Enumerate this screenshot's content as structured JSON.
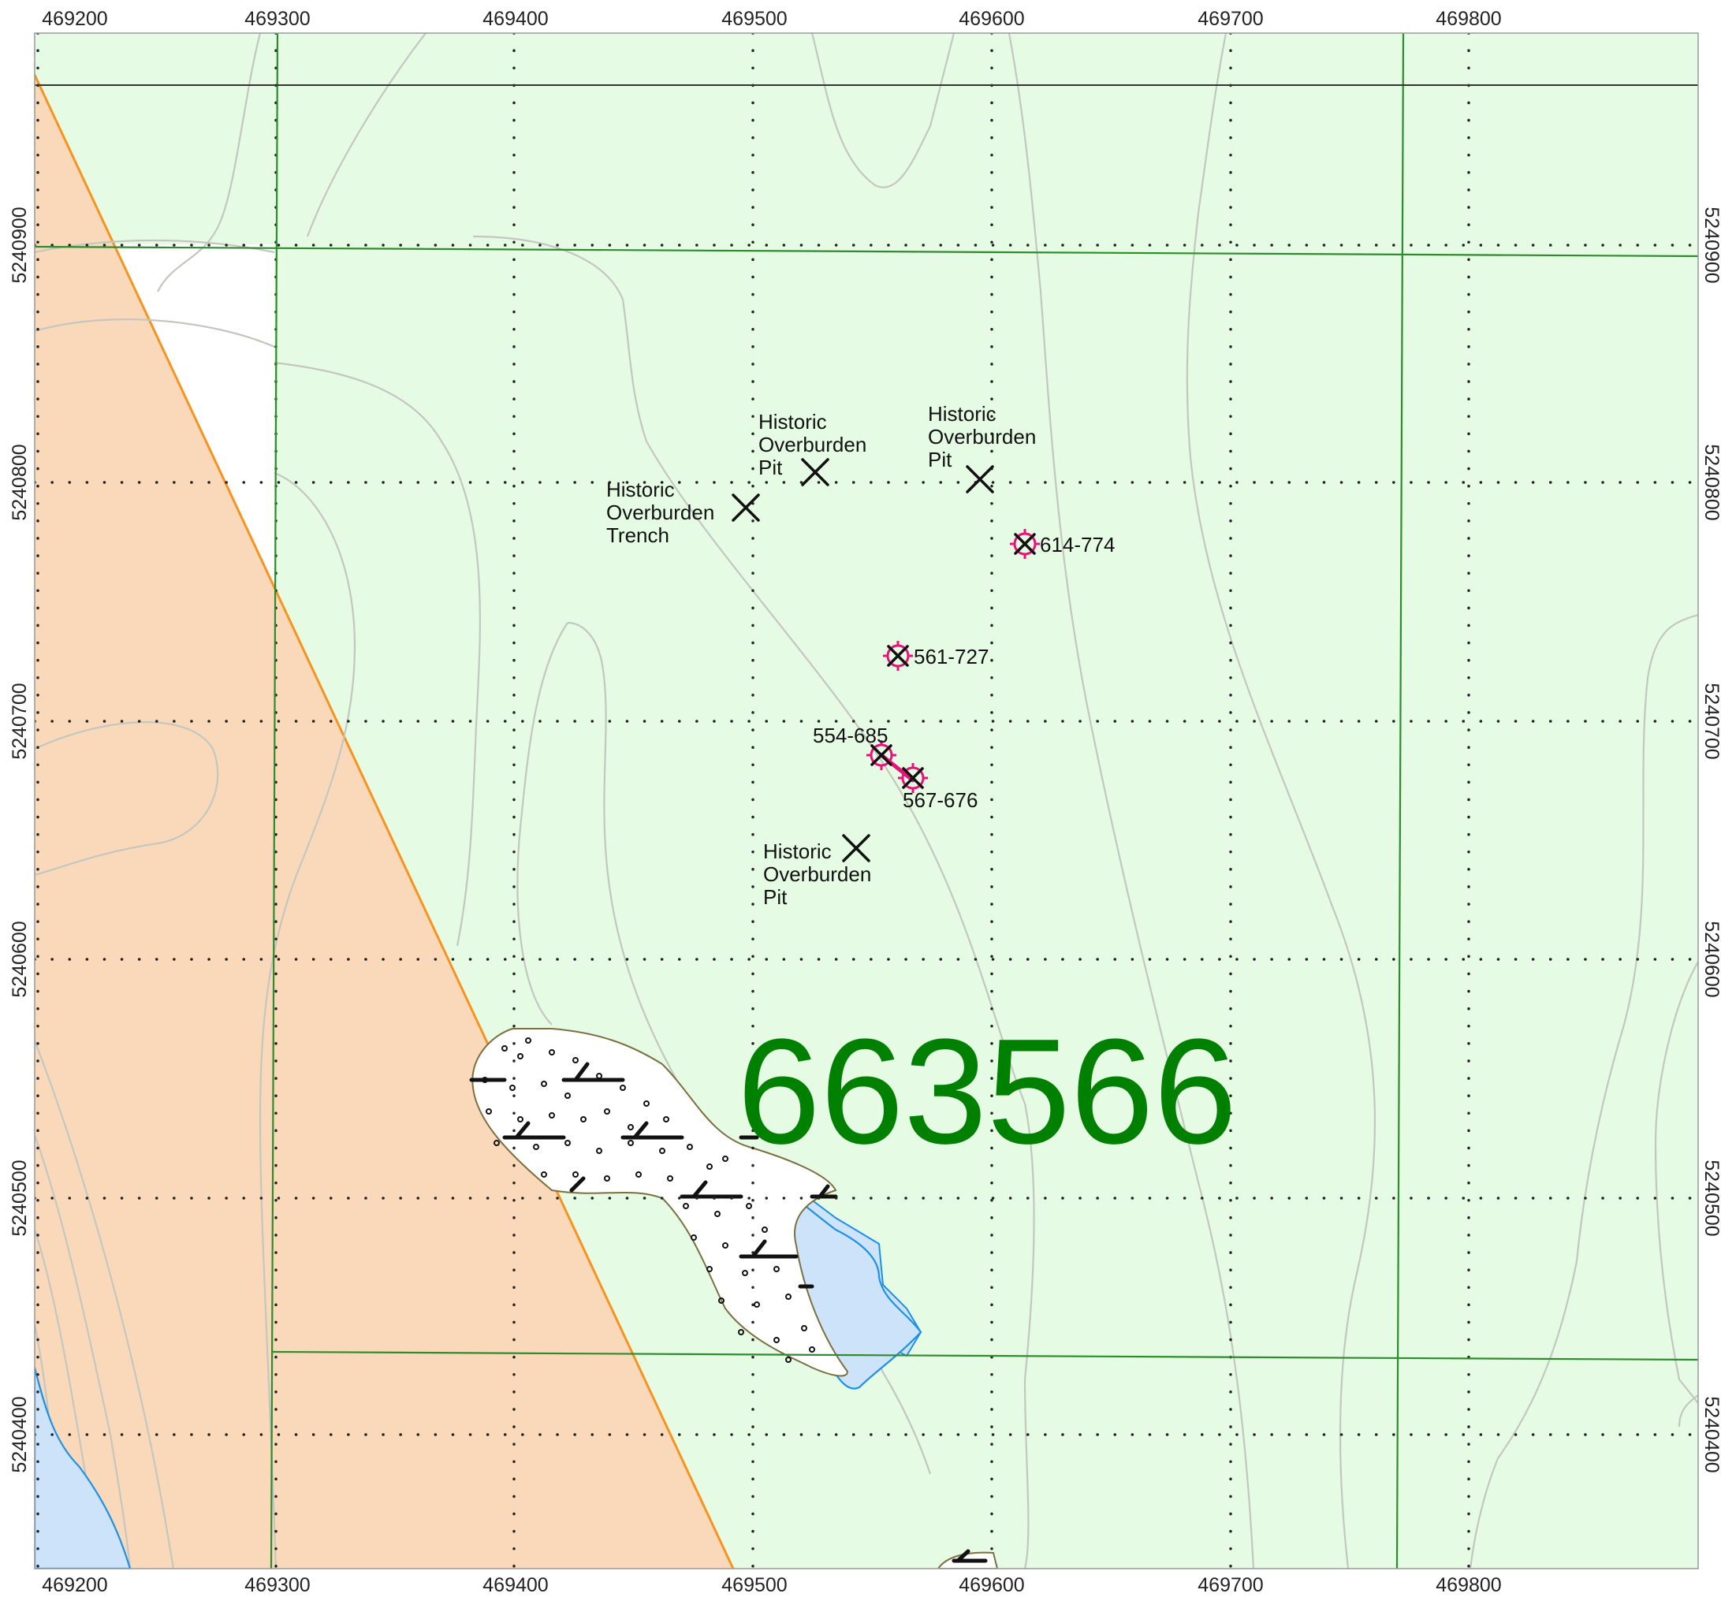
{
  "map": {
    "x_axis_labels": [
      "469200",
      "469300",
      "469400",
      "469500",
      "469600",
      "469700",
      "469800"
    ],
    "y_axis_labels": [
      "5240900",
      "5240800",
      "5240700",
      "5240600",
      "5240500",
      "5240400"
    ],
    "claim_number": "663566",
    "features": [
      {
        "name": "historic-trench",
        "lines": [
          "Historic",
          "Overburden",
          "Trench"
        ]
      },
      {
        "name": "historic-pit-1",
        "lines": [
          "Historic",
          "Overburden",
          "Pit"
        ]
      },
      {
        "name": "historic-pit-2",
        "lines": [
          "Historic",
          "Overburden",
          "Pit"
        ]
      },
      {
        "name": "historic-pit-3",
        "lines": [
          "Historic",
          "Overburden",
          "Pit"
        ]
      }
    ],
    "sample_sites": [
      "614-774",
      "561-727",
      "554-685",
      "567-676"
    ],
    "colors": {
      "claim_area": "#e5fbe4",
      "geology_unit": "#fad9bb",
      "geology_contact": "#f7931e",
      "water": "#cce3fa",
      "water_edge": "#1e90e8",
      "claim_line": "#2e8b2e",
      "contour": "#c3c7c0",
      "sample_marker": "#e8127a",
      "claim_number": "#008000"
    }
  }
}
